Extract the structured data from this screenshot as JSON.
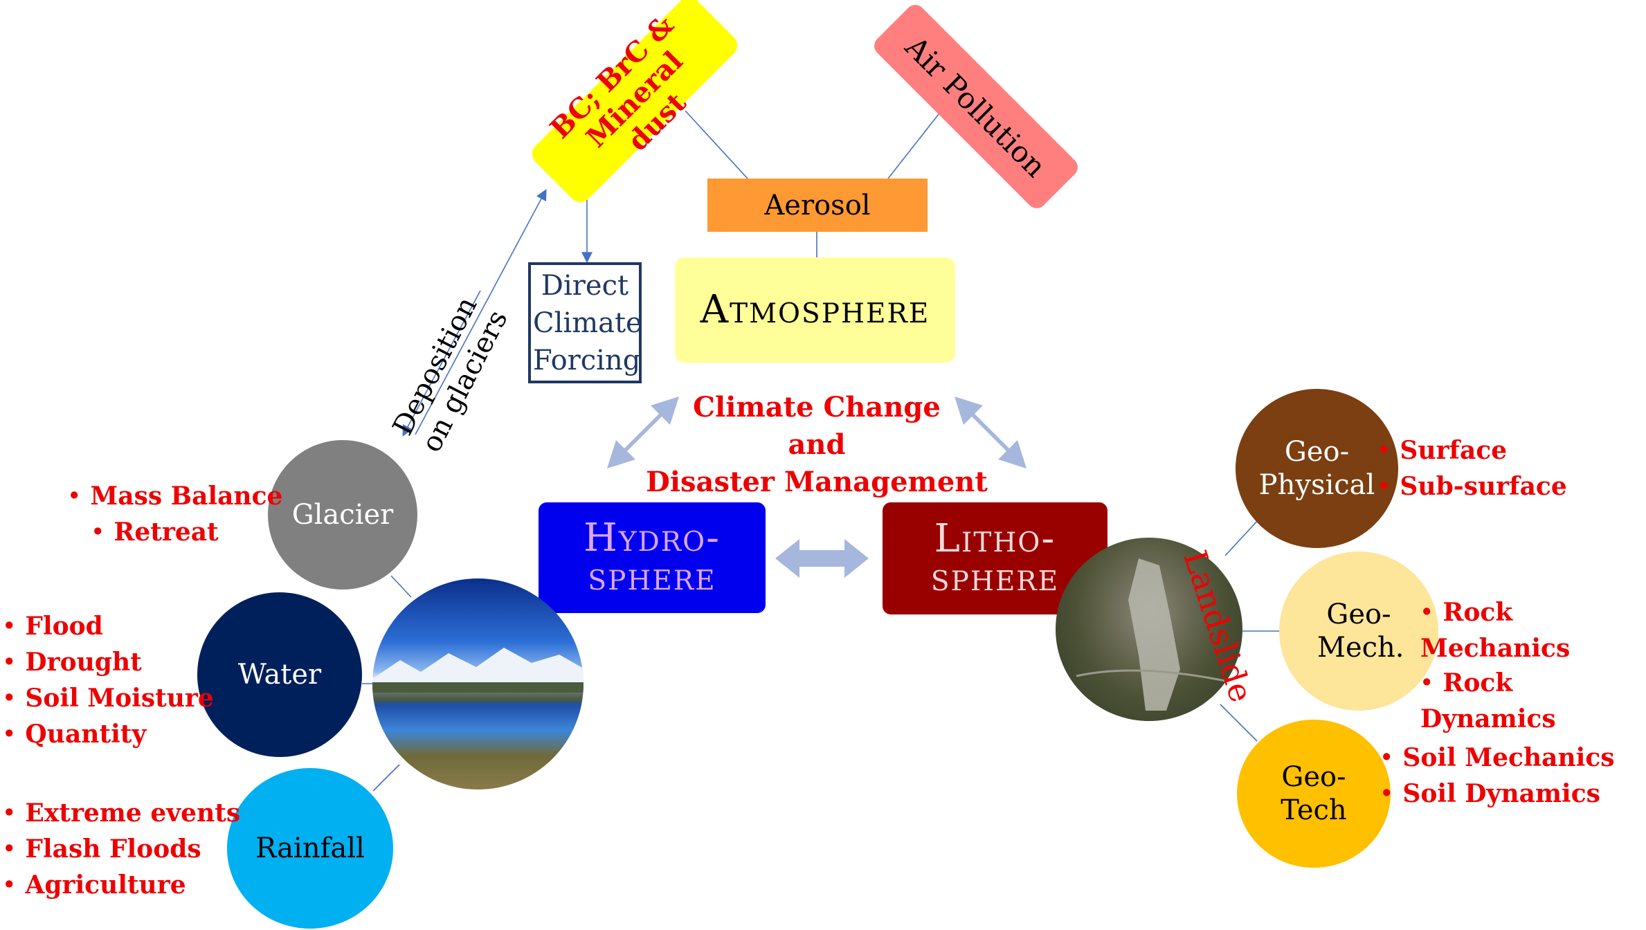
{
  "atmosphere": {
    "label": "Atmosphere",
    "aerosol": "Aerosol",
    "bc_box": "BC; BrC & Mineral dust",
    "air_pollution": "Air Pollution",
    "direct_forcing": "Direct Climate Forcing",
    "deposition": "Deposition on glaciers"
  },
  "center": {
    "line1": "Climate Change",
    "line2": "and",
    "line3": "Disaster Management"
  },
  "hydrosphere": {
    "label": "Hydro-sphere",
    "glacier": {
      "label": "Glacier",
      "items": [
        "Mass Balance",
        "Retreat"
      ]
    },
    "water": {
      "label": "Water",
      "items": [
        "Flood",
        "Drought",
        "Soil Moisture",
        "Quantity"
      ]
    },
    "rainfall": {
      "label": "Rainfall",
      "items": [
        "Extreme events",
        "Flash Floods",
        "Agriculture"
      ]
    }
  },
  "lithosphere": {
    "label": "Litho-sphere",
    "landslide": "Landslide",
    "geophysical": {
      "label": "Geo-Physical",
      "items": [
        "Surface",
        "Sub-surface"
      ]
    },
    "geomech": {
      "label": "Geo-Mech.",
      "items": [
        "Rock Mechanics",
        "Rock Dynamics"
      ]
    },
    "geotech": {
      "label": "Geo-Tech",
      "items": [
        "Soil Mechanics",
        "Soil Dynamics"
      ]
    }
  },
  "colors": {
    "atmosphere_box": "#ffff99",
    "aerosol_box": "#ff9933",
    "bc_box": "#ffff00",
    "air_pollution_box": "#ff7f7f",
    "hydrosphere_box": "#0000ee",
    "lithosphere_box": "#990000",
    "glacier": "#808080",
    "water": "#00205b",
    "rainfall": "#00b0f0",
    "geophysical": "#7b3f11",
    "geomech": "#fde59a",
    "geotech": "#ffc000",
    "text_red": "#ee0000",
    "arrow": "#a6b7dd"
  }
}
